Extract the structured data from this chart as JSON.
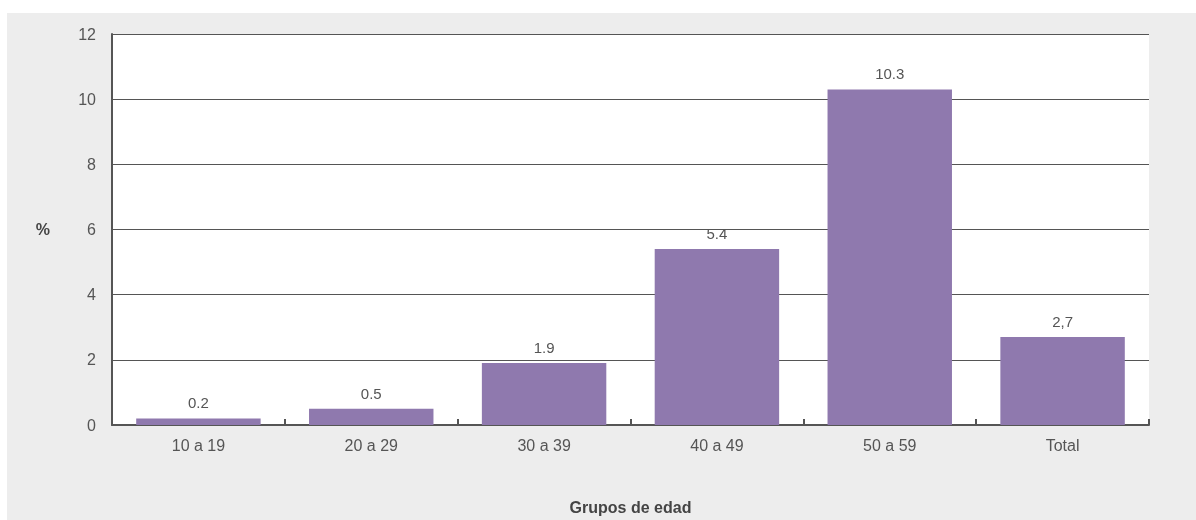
{
  "chart_data": {
    "type": "bar",
    "xlabel": "Grupos de edad",
    "ylabel": "%",
    "categories": [
      "10 a 19",
      "20 a 29",
      "30 a 39",
      "40 a 49",
      "50 a 59",
      "Total"
    ],
    "values": [
      0.2,
      0.5,
      1.9,
      5.4,
      10.3,
      2.7
    ],
    "value_labels": [
      "0.2",
      "0.5",
      "1.9",
      "5.4",
      "10.3",
      "2,7"
    ],
    "color": "#8f79ae",
    "ylim": [
      0,
      12
    ],
    "yticks": [
      0,
      2,
      4,
      6,
      8,
      10,
      12
    ],
    "grid": "y"
  }
}
